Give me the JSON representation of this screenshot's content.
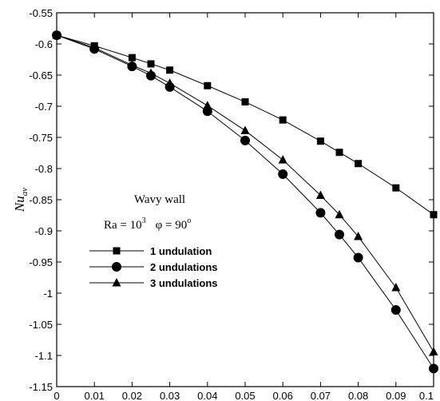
{
  "chart_data": {
    "type": "line",
    "title": "",
    "xlabel": "",
    "ylabel": {
      "main": "Nu",
      "sub": "av"
    },
    "xlim": [
      0,
      0.1
    ],
    "ylim": [
      -1.15,
      -0.55
    ],
    "x_ticks": [
      "0",
      "0.01",
      "0.02",
      "0.03",
      "0.04",
      "0.05",
      "0.06",
      "0.07",
      "0.08",
      "0.09",
      "0.1"
    ],
    "y_ticks": [
      "-0.55",
      "-0.6",
      "-0.65",
      "-0.7",
      "-0.75",
      "-0.8",
      "-0.85",
      "-0.9",
      "-0.95",
      "-1",
      "-1.05",
      "-1.1",
      "-1.15"
    ],
    "grid": false,
    "legend_position": "middle-left",
    "annotation": {
      "line1": "Wavy wall",
      "ra_label": "Ra = 10",
      "ra_exp": "3",
      "phi_label": "φ = 90",
      "phi_exp": "o"
    },
    "series": [
      {
        "name": "1 undulation",
        "marker": "square",
        "x": [
          0,
          0.01,
          0.02,
          0.025,
          0.03,
          0.04,
          0.05,
          0.06,
          0.07,
          0.075,
          0.08,
          0.09,
          0.1
        ],
        "values": [
          -0.586,
          -0.603,
          -0.622,
          -0.632,
          -0.642,
          -0.667,
          -0.693,
          -0.722,
          -0.756,
          -0.774,
          -0.792,
          -0.831,
          -0.874
        ]
      },
      {
        "name": "2 undulations",
        "marker": "circle",
        "x": [
          0,
          0.01,
          0.02,
          0.025,
          0.03,
          0.04,
          0.05,
          0.06,
          0.07,
          0.075,
          0.08,
          0.09,
          0.1
        ],
        "values": [
          -0.586,
          -0.608,
          -0.636,
          -0.651,
          -0.669,
          -0.708,
          -0.755,
          -0.809,
          -0.871,
          -0.906,
          -0.943,
          -1.027,
          -1.121
        ]
      },
      {
        "name": "3 undulations",
        "marker": "triangle",
        "x": [
          0,
          0.01,
          0.02,
          0.025,
          0.03,
          0.04,
          0.05,
          0.06,
          0.07,
          0.075,
          0.08,
          0.09,
          0.1
        ],
        "values": [
          -0.586,
          -0.606,
          -0.634,
          -0.647,
          -0.663,
          -0.699,
          -0.739,
          -0.786,
          -0.843,
          -0.874,
          -0.909,
          -0.991,
          -1.094
        ]
      }
    ]
  }
}
